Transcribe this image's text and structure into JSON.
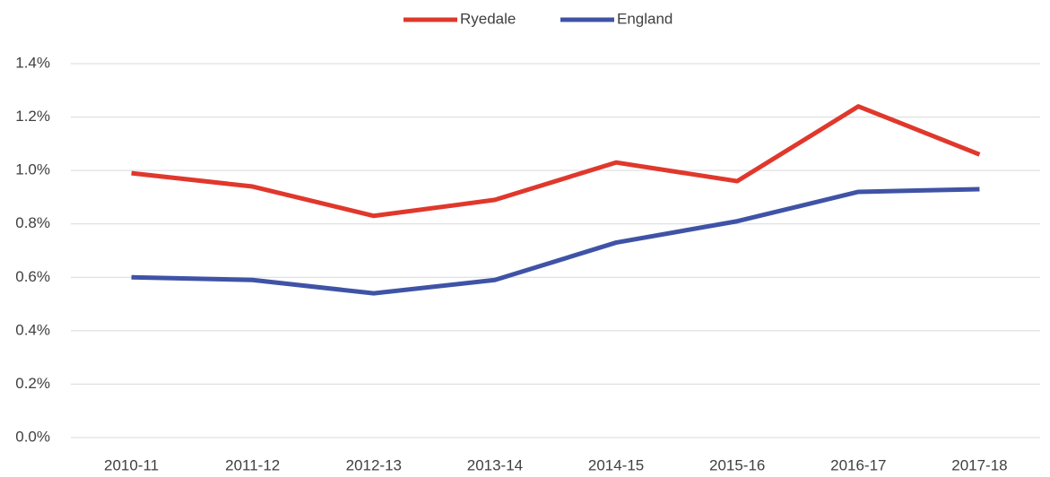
{
  "chart_data": {
    "type": "line",
    "categories": [
      "2010-11",
      "2011-12",
      "2012-13",
      "2013-14",
      "2014-15",
      "2015-16",
      "2016-17",
      "2017-18"
    ],
    "series": [
      {
        "name": "Ryedale",
        "color": "#e0382c",
        "values": [
          0.99,
          0.94,
          0.83,
          0.89,
          1.03,
          0.96,
          1.24,
          1.06
        ]
      },
      {
        "name": "England",
        "color": "#3f53a6",
        "values": [
          0.6,
          0.59,
          0.54,
          0.59,
          0.73,
          0.81,
          0.92,
          0.93
        ]
      }
    ],
    "ylim": [
      0,
      1.4
    ],
    "yticks": [
      {
        "value": 0,
        "label": "0.0%"
      },
      {
        "value": 0.2,
        "label": "0.2%"
      },
      {
        "value": 0.4,
        "label": "0.4%"
      },
      {
        "value": 0.6,
        "label": "0.6%"
      },
      {
        "value": 0.8,
        "label": "0.8%"
      },
      {
        "value": 1.0,
        "label": "1.0%"
      },
      {
        "value": 1.2,
        "label": "1.2%"
      },
      {
        "value": 1.4,
        "label": "1.4%"
      }
    ],
    "grid": true,
    "legend": "top"
  }
}
